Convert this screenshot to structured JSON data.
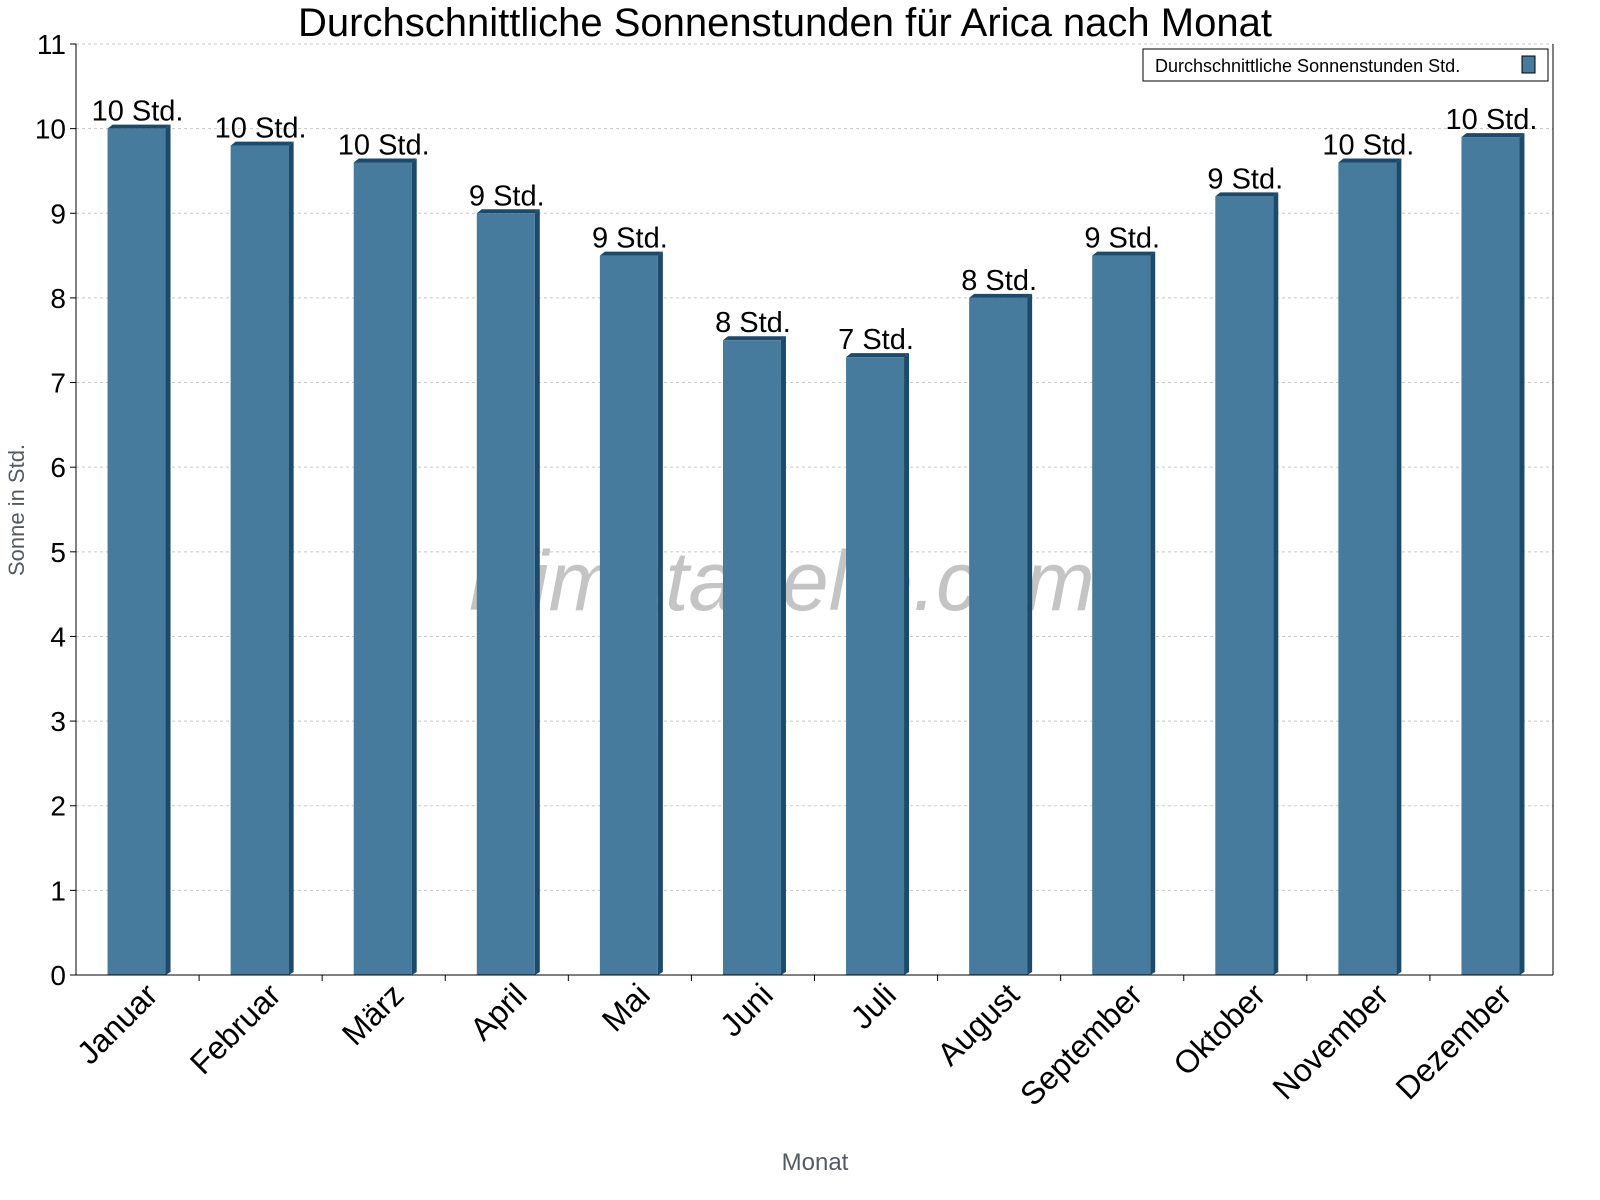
{
  "chart_data": {
    "type": "bar",
    "title": "Durchschnittliche Sonnenstunden für Arica nach Monat",
    "xlabel": "Monat",
    "ylabel": "Sonne in Std.",
    "ylim": [
      0,
      11
    ],
    "yticks": [
      "0",
      "1",
      "2",
      "3",
      "4",
      "5",
      "6",
      "7",
      "8",
      "9",
      "10",
      "11"
    ],
    "grid": true,
    "legend_position": "top-right",
    "categories": [
      "Januar",
      "Februar",
      "März",
      "April",
      "Mai",
      "Juni",
      "Juli",
      "August",
      "September",
      "Oktober",
      "November",
      "Dezember"
    ],
    "series": [
      {
        "name": "Durchschnittliche Sonnenstunden Std.",
        "values": [
          10.0,
          9.8,
          9.6,
          9.0,
          8.5,
          7.5,
          7.3,
          8.0,
          8.5,
          9.2,
          9.6,
          9.9
        ],
        "data_labels": [
          "10 Std.",
          "10 Std.",
          "10 Std.",
          "9 Std.",
          "9 Std.",
          "8 Std.",
          "7 Std.",
          "8 Std.",
          "9 Std.",
          "9 Std.",
          "10 Std.",
          "10 Std."
        ],
        "color": "#467b9e",
        "side_color": "#1b4a6b"
      }
    ],
    "watermark": "klimatabelle.com"
  }
}
